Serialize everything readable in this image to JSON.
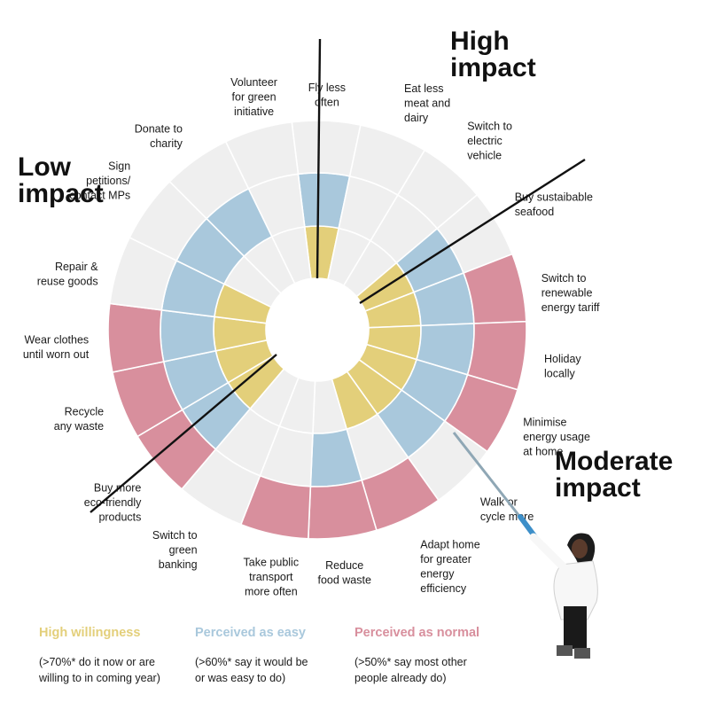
{
  "zones": {
    "high": [
      "High",
      "impact"
    ],
    "low": [
      "Low",
      "impact"
    ],
    "moderate": [
      "Moderate",
      "impact"
    ]
  },
  "colors": {
    "willingness": "#e3cf7a",
    "easy": "#a9c8dc",
    "normal": "#d88f9d",
    "empty": "#efefef",
    "lines": "#111111"
  },
  "activities": [
    {
      "name": "fly-less",
      "lines": [
        "Fly less",
        "often"
      ],
      "willing": true,
      "easy": true,
      "normal": false
    },
    {
      "name": "eat-less-meat",
      "lines": [
        "Eat less",
        "meat and",
        "dairy"
      ],
      "willing": false,
      "easy": false,
      "normal": false
    },
    {
      "name": "electric-vehicle",
      "lines": [
        "Switch to",
        "electric",
        "vehicle"
      ],
      "willing": false,
      "easy": false,
      "normal": false
    },
    {
      "name": "sustainable-seafood",
      "lines": [
        "Buy sustaibable",
        "seafood"
      ],
      "willing": true,
      "easy": true,
      "normal": false
    },
    {
      "name": "renewable-tariff",
      "lines": [
        "Switch to",
        "renewable",
        "energy tariff"
      ],
      "willing": true,
      "easy": true,
      "normal": true
    },
    {
      "name": "holiday-locally",
      "lines": [
        "Holiday",
        "locally"
      ],
      "willing": true,
      "easy": true,
      "normal": true
    },
    {
      "name": "minimise-energy",
      "lines": [
        "Minimise",
        "energy usage",
        "at home"
      ],
      "willing": true,
      "easy": true,
      "normal": true
    },
    {
      "name": "walk-or-cycle",
      "lines": [
        "Walk or",
        "cycle more"
      ],
      "willing": true,
      "easy": true,
      "normal": false
    },
    {
      "name": "adapt-home",
      "lines": [
        "Adapt home",
        "for greater",
        "energy",
        "efficiency"
      ],
      "willing": true,
      "easy": false,
      "normal": true
    },
    {
      "name": "reduce-food-waste",
      "lines": [
        "Reduce",
        "food waste"
      ],
      "willing": false,
      "easy": true,
      "normal": true
    },
    {
      "name": "public-transport",
      "lines": [
        "Take public",
        "transport",
        "more often"
      ],
      "willing": false,
      "easy": false,
      "normal": true
    },
    {
      "name": "green-banking",
      "lines": [
        "Switch to",
        "green",
        "banking"
      ],
      "willing": false,
      "easy": false,
      "normal": false
    },
    {
      "name": "eco-products",
      "lines": [
        "Buy more",
        "eco-friendly",
        "products"
      ],
      "willing": true,
      "easy": true,
      "normal": true
    },
    {
      "name": "recycle",
      "lines": [
        "Recycle",
        "any waste"
      ],
      "willing": true,
      "easy": true,
      "normal": true
    },
    {
      "name": "wear-clothes",
      "lines": [
        "Wear clothes",
        "until worn out"
      ],
      "willing": true,
      "easy": true,
      "normal": true
    },
    {
      "name": "repair-reuse",
      "lines": [
        "Repair &",
        "reuse goods"
      ],
      "willing": true,
      "easy": true,
      "normal": false
    },
    {
      "name": "sign-petitions",
      "lines": [
        "Sign",
        "petitions/",
        "contact MPs"
      ],
      "willing": false,
      "easy": true,
      "normal": false
    },
    {
      "name": "donate-charity",
      "lines": [
        "Donate to",
        "charity"
      ],
      "willing": false,
      "easy": true,
      "normal": false
    },
    {
      "name": "volunteer",
      "lines": [
        "Volunteer",
        "for green",
        "initiative"
      ],
      "willing": false,
      "easy": false,
      "normal": false
    }
  ],
  "legend": [
    {
      "title": "High willingness",
      "desc": [
        "(>70%* do it now or are",
        "willing to in coming year)"
      ],
      "color": "#e3cf7a"
    },
    {
      "title": "Perceived as easy",
      "desc": [
        "(>60%* say it would be",
        "or was easy to do)"
      ],
      "color": "#a9c8dc"
    },
    {
      "title": "Perceived as normal",
      "desc": [
        "(>50%* say most other",
        "people already do)"
      ],
      "color": "#d88f9d"
    }
  ]
}
